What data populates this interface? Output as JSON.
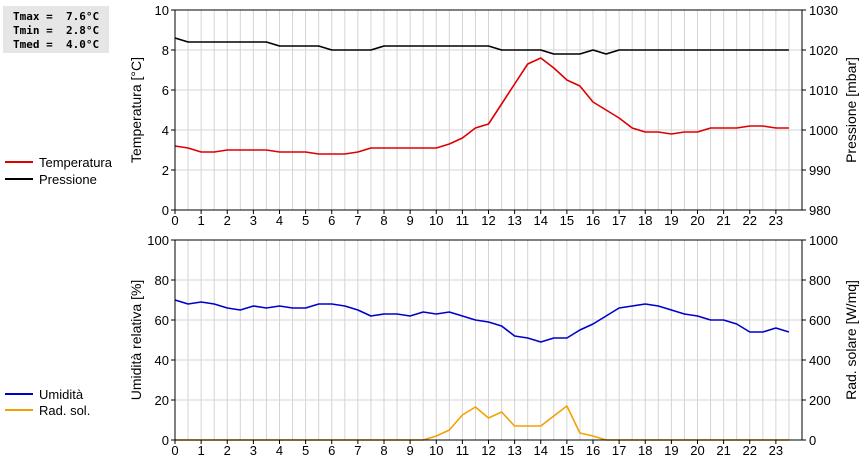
{
  "stats": {
    "tmax": "Tmax =  7.6°C",
    "tmin": "Tmin =  2.8°C",
    "tmed": "Tmed =  4.0°C"
  },
  "legend": {
    "temperature": "Temperatura",
    "pressure": "Pressione",
    "humidity": "Umidità",
    "solar": "Rad. sol."
  },
  "colors": {
    "temperature": "#dd0000",
    "pressure": "#000000",
    "humidity": "#0000cc",
    "solar": "#f5a000",
    "grid": "#d4d4d4",
    "stats_bg": "#e6e6e6"
  },
  "chart_data": [
    {
      "type": "line",
      "ylabel": "Temperatura [°C]",
      "y2label": "Pressione [mbar]",
      "xlim": [
        0,
        24
      ],
      "ylim": [
        0,
        10
      ],
      "y2lim": [
        980,
        1030
      ],
      "xticks": [
        "0",
        "1",
        "2",
        "3",
        "4",
        "5",
        "6",
        "7",
        "8",
        "9",
        "10",
        "11",
        "12",
        "13",
        "14",
        "15",
        "16",
        "17",
        "18",
        "19",
        "20",
        "21",
        "22",
        "23"
      ],
      "yticks": [
        "0",
        "2",
        "4",
        "6",
        "8",
        "10"
      ],
      "y2ticks": [
        "980",
        "990",
        "1000",
        "1010",
        "1020",
        "1030"
      ],
      "grid": true,
      "series": [
        {
          "name": "Temperatura",
          "axis": "left",
          "x": [
            0,
            0.5,
            1,
            1.5,
            2,
            2.5,
            3,
            3.5,
            4,
            4.5,
            5,
            5.5,
            6,
            6.5,
            7,
            7.5,
            8,
            8.5,
            9,
            9.5,
            10,
            10.5,
            11,
            11.5,
            12,
            12.5,
            13,
            13.5,
            14,
            14.5,
            15,
            15.5,
            16,
            16.5,
            17,
            17.5,
            18,
            18.5,
            19,
            19.5,
            20,
            20.5,
            21,
            21.5,
            22,
            22.5,
            23,
            23.5
          ],
          "y": [
            3.2,
            3.1,
            2.9,
            2.9,
            3.0,
            3.0,
            3.0,
            3.0,
            2.9,
            2.9,
            2.9,
            2.8,
            2.8,
            2.8,
            2.9,
            3.1,
            3.1,
            3.1,
            3.1,
            3.1,
            3.1,
            3.3,
            3.6,
            4.1,
            4.3,
            5.3,
            6.3,
            7.3,
            7.6,
            7.1,
            6.5,
            6.2,
            5.4,
            5.0,
            4.6,
            4.1,
            3.9,
            3.9,
            3.8,
            3.9,
            3.9,
            4.1,
            4.1,
            4.1,
            4.2,
            4.2,
            4.1,
            4.1
          ]
        },
        {
          "name": "Pressione",
          "axis": "right",
          "x": [
            0,
            0.5,
            1,
            1.5,
            2,
            2.5,
            3,
            3.5,
            4,
            4.5,
            5,
            5.5,
            6,
            6.5,
            7,
            7.5,
            8,
            8.5,
            9,
            9.5,
            10,
            10.5,
            11,
            11.5,
            12,
            12.5,
            13,
            13.5,
            14,
            14.5,
            15,
            15.5,
            16,
            16.5,
            17,
            17.5,
            18,
            18.5,
            19,
            19.5,
            20,
            20.5,
            21,
            21.5,
            22,
            22.5,
            23,
            23.5
          ],
          "y": [
            1023,
            1022,
            1022,
            1022,
            1022,
            1022,
            1022,
            1022,
            1021,
            1021,
            1021,
            1021,
            1020,
            1020,
            1020,
            1020,
            1021,
            1021,
            1021,
            1021,
            1021,
            1021,
            1021,
            1021,
            1021,
            1020,
            1020,
            1020,
            1020,
            1019,
            1019,
            1019,
            1020,
            1019,
            1020,
            1020,
            1020,
            1020,
            1020,
            1020,
            1020,
            1020,
            1020,
            1020,
            1020,
            1020,
            1020,
            1020
          ]
        }
      ]
    },
    {
      "type": "line",
      "ylabel": "Umidità relativa [%]",
      "y2label": "Rad. solare [W/mq]",
      "xlim": [
        0,
        24
      ],
      "ylim": [
        0,
        100
      ],
      "y2lim": [
        0,
        1000
      ],
      "xticks": [
        "0",
        "1",
        "2",
        "3",
        "4",
        "5",
        "6",
        "7",
        "8",
        "9",
        "10",
        "11",
        "12",
        "13",
        "14",
        "15",
        "16",
        "17",
        "18",
        "19",
        "20",
        "21",
        "22",
        "23"
      ],
      "yticks": [
        "0",
        "20",
        "40",
        "60",
        "80",
        "100"
      ],
      "y2ticks": [
        "0",
        "200",
        "400",
        "600",
        "800",
        "1000"
      ],
      "grid": true,
      "series": [
        {
          "name": "Umidità",
          "axis": "left",
          "x": [
            0,
            0.5,
            1,
            1.5,
            2,
            2.5,
            3,
            3.5,
            4,
            4.5,
            5,
            5.5,
            6,
            6.5,
            7,
            7.5,
            8,
            8.5,
            9,
            9.5,
            10,
            10.5,
            11,
            11.5,
            12,
            12.5,
            13,
            13.5,
            14,
            14.5,
            15,
            15.5,
            16,
            16.5,
            17,
            17.5,
            18,
            18.5,
            19,
            19.5,
            20,
            20.5,
            21,
            21.5,
            22,
            22.5,
            23,
            23.5
          ],
          "y": [
            70,
            68,
            69,
            68,
            66,
            65,
            67,
            66,
            67,
            66,
            66,
            68,
            68,
            67,
            65,
            62,
            63,
            63,
            62,
            64,
            63,
            64,
            62,
            60,
            59,
            57,
            52,
            51,
            49,
            51,
            51,
            55,
            58,
            62,
            66,
            67,
            68,
            67,
            65,
            63,
            62,
            60,
            60,
            58,
            54,
            54,
            56,
            54
          ]
        },
        {
          "name": "Rad. sol.",
          "axis": "right",
          "x": [
            0,
            0.5,
            1,
            1.5,
            2,
            2.5,
            3,
            3.5,
            4,
            4.5,
            5,
            5.5,
            6,
            6.5,
            7,
            7.5,
            8,
            8.5,
            9,
            9.5,
            10,
            10.5,
            11,
            11.5,
            12,
            12.5,
            13,
            13.5,
            14,
            14.5,
            15,
            15.5,
            16,
            16.5,
            17,
            17.5,
            18,
            18.5,
            19,
            19.5,
            20,
            20.5,
            21,
            21.5,
            22,
            22.5,
            23,
            23.5
          ],
          "y": [
            0,
            0,
            0,
            0,
            0,
            0,
            0,
            0,
            0,
            0,
            0,
            0,
            0,
            0,
            0,
            0,
            0,
            0,
            0,
            0,
            20,
            50,
            125,
            165,
            110,
            140,
            70,
            70,
            70,
            120,
            170,
            35,
            20,
            0,
            0,
            0,
            0,
            0,
            0,
            0,
            0,
            0,
            0,
            0,
            0,
            0,
            0,
            0
          ]
        }
      ]
    }
  ]
}
